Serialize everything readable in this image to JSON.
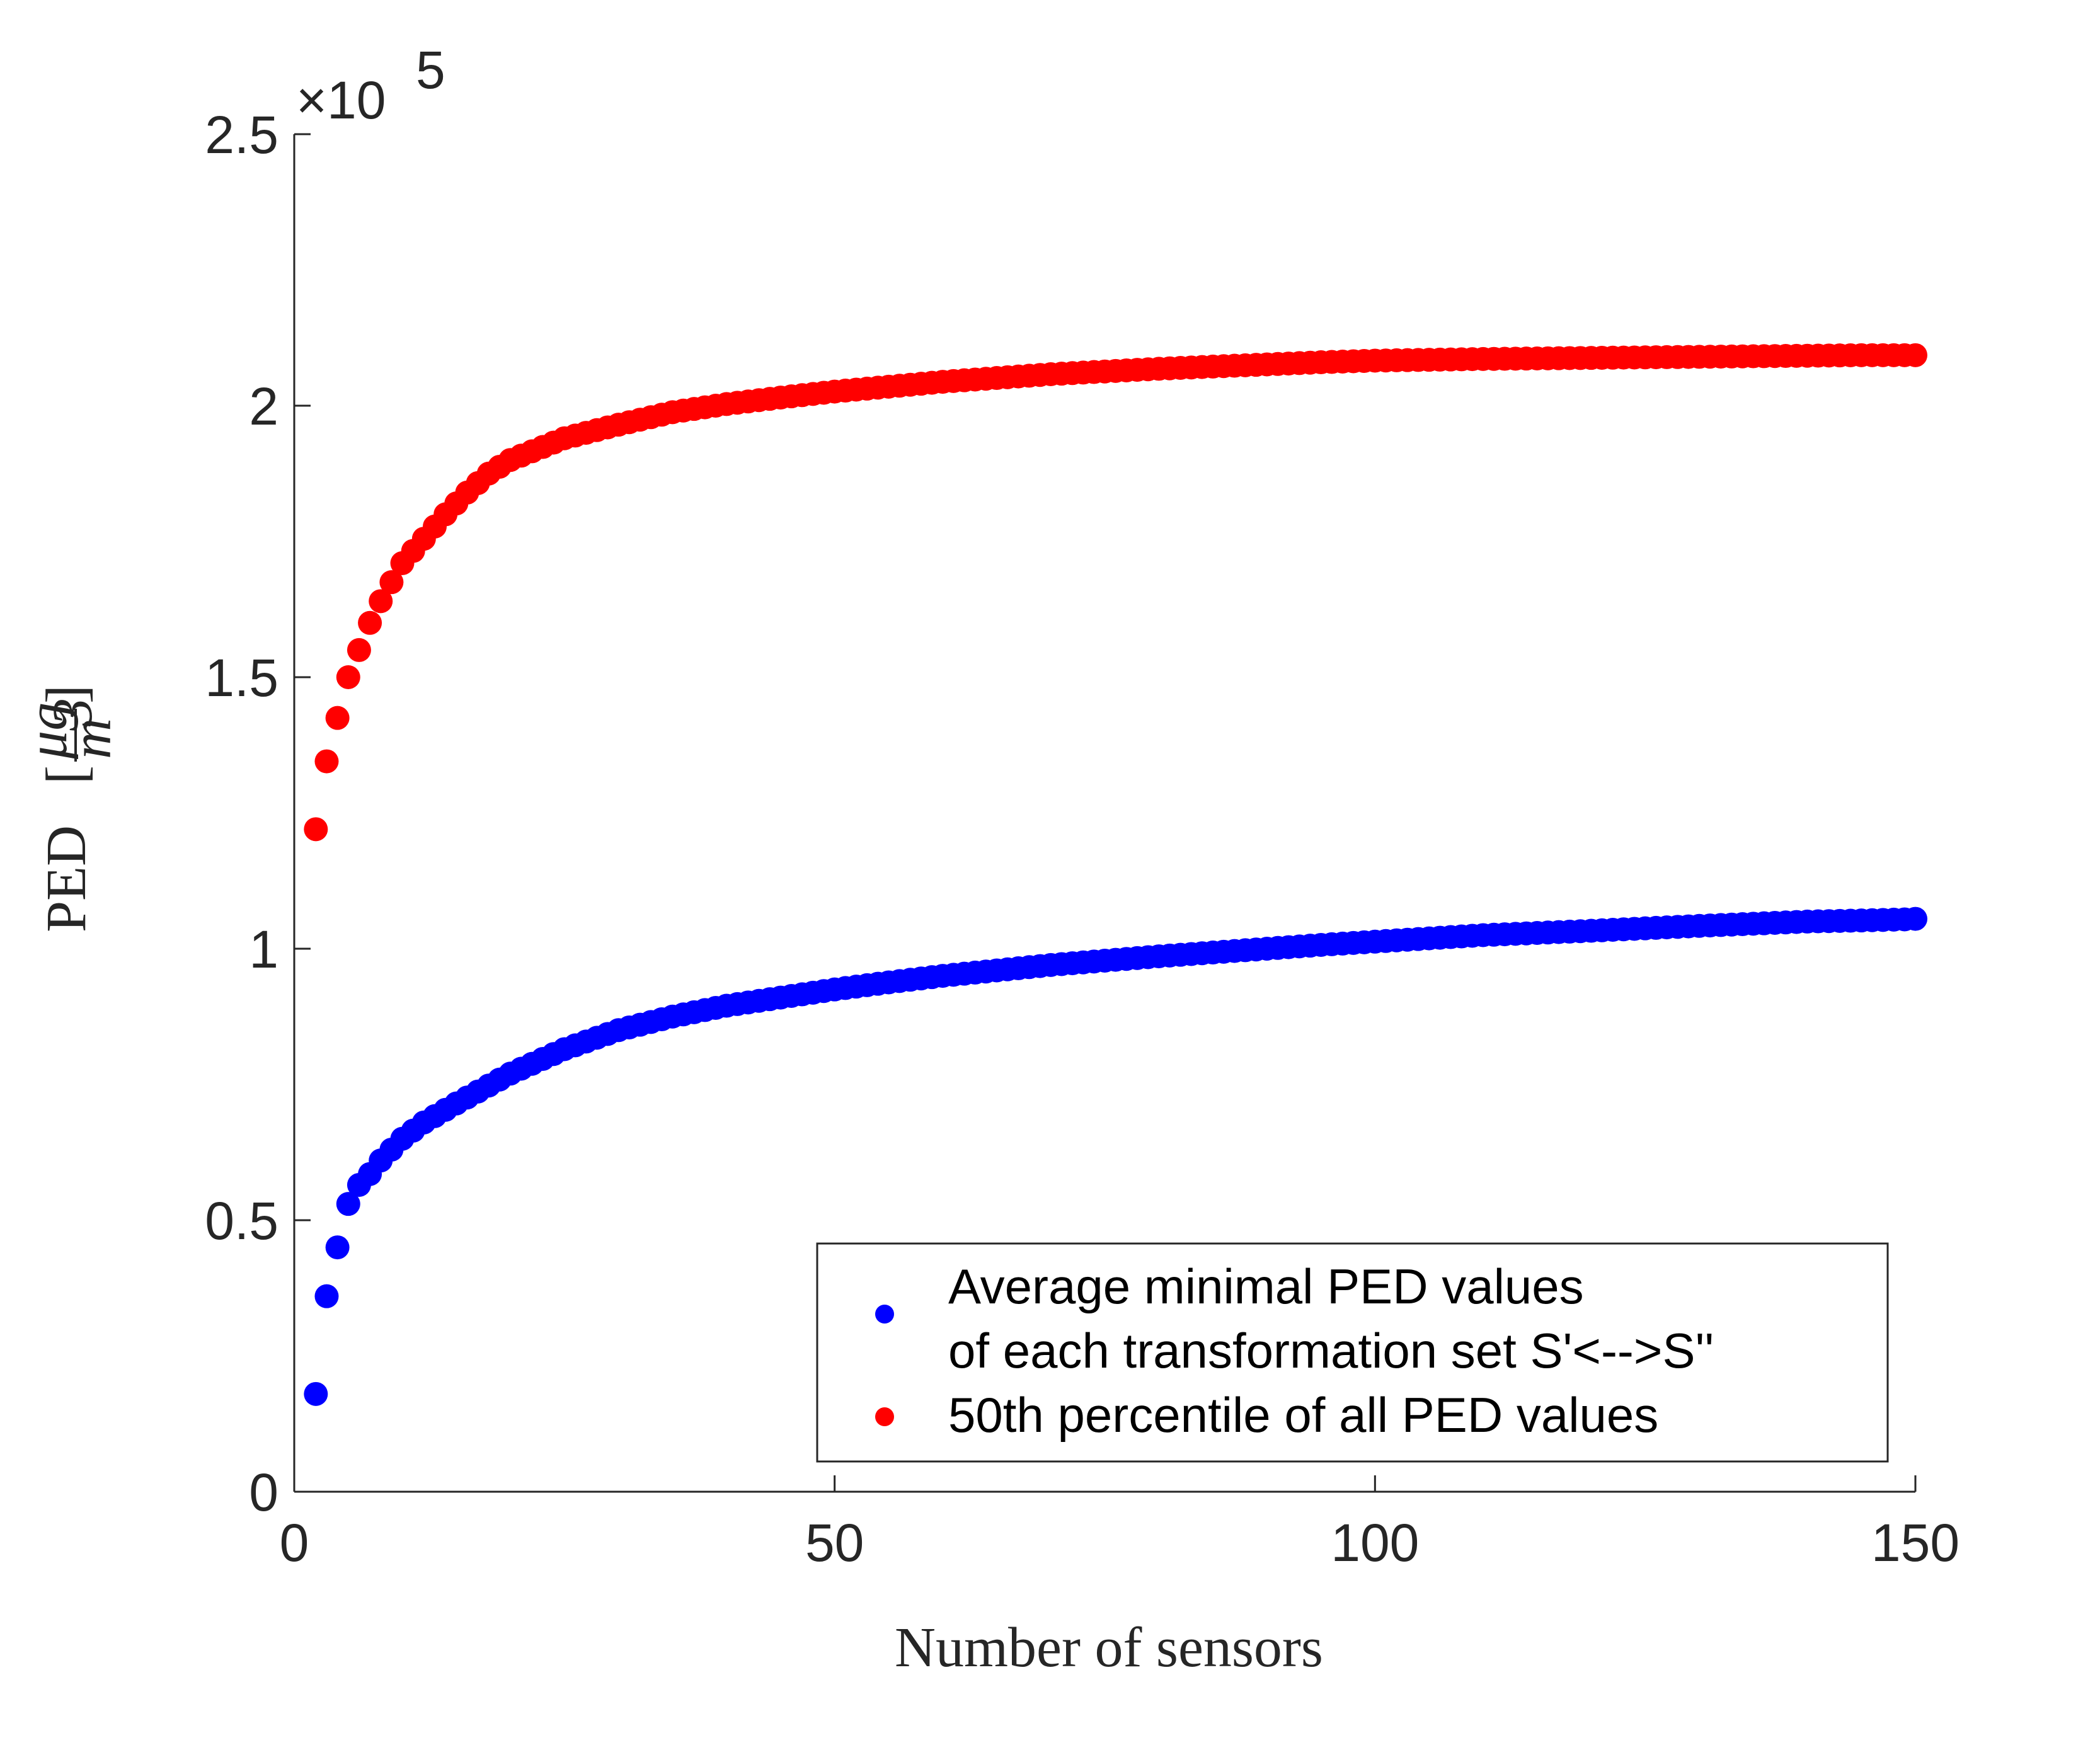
{
  "chart_data": {
    "type": "scatter",
    "xlabel": "Number of sensors",
    "ylabel": "PED",
    "ylabel_unit_numerator": "μg",
    "ylabel_unit_denominator": "m",
    "ylabel_unit_power": "3",
    "y_exponent_prefix": "×10",
    "y_exponent_power": "5",
    "xlim": [
      0,
      150
    ],
    "ylim": [
      0,
      250000
    ],
    "xticks": [
      "0",
      "50",
      "100",
      "150"
    ],
    "yticks": [
      "0",
      "0.5",
      "1",
      "1.5",
      "2",
      "2.5"
    ],
    "grid": false,
    "legend_position": "lower-right",
    "series": [
      {
        "name_line1": "Average minimal PED values",
        "name_line2": "of each transformation set S'<-->S''",
        "color": "#0000ff",
        "points": [
          [
            2,
            18000
          ],
          [
            3,
            36000
          ],
          [
            4,
            45000
          ],
          [
            5,
            53000
          ],
          [
            6,
            56500
          ],
          [
            7,
            58500
          ],
          [
            8,
            61000
          ],
          [
            10,
            65000
          ],
          [
            12,
            68000
          ],
          [
            15,
            71500
          ],
          [
            20,
            77000
          ],
          [
            25,
            81500
          ],
          [
            30,
            85000
          ],
          [
            35,
            87500
          ],
          [
            40,
            89500
          ],
          [
            45,
            91000
          ],
          [
            50,
            92500
          ],
          [
            55,
            93800
          ],
          [
            60,
            95000
          ],
          [
            65,
            96000
          ],
          [
            70,
            97000
          ],
          [
            75,
            97800
          ],
          [
            80,
            98600
          ],
          [
            85,
            99300
          ],
          [
            90,
            100000
          ],
          [
            95,
            100700
          ],
          [
            100,
            101300
          ],
          [
            110,
            102500
          ],
          [
            120,
            103300
          ],
          [
            130,
            104200
          ],
          [
            140,
            105000
          ],
          [
            145,
            105200
          ],
          [
            147,
            105300
          ],
          [
            149,
            105400
          ],
          [
            150,
            105500
          ]
        ]
      },
      {
        "name": "50th percentile of all PED values",
        "color": "#ff0000",
        "points": [
          [
            2,
            122000
          ],
          [
            3,
            134500
          ],
          [
            4,
            142500
          ],
          [
            5,
            150000
          ],
          [
            6,
            155000
          ],
          [
            7,
            160000
          ],
          [
            8,
            164000
          ],
          [
            9,
            167500
          ],
          [
            10,
            171000
          ],
          [
            12,
            175500
          ],
          [
            14,
            180000
          ],
          [
            16,
            184000
          ],
          [
            18,
            187500
          ],
          [
            20,
            190000
          ],
          [
            25,
            194000
          ],
          [
            30,
            196500
          ],
          [
            35,
            198800
          ],
          [
            40,
            200300
          ],
          [
            45,
            201500
          ],
          [
            50,
            202600
          ],
          [
            55,
            203500
          ],
          [
            60,
            204400
          ],
          [
            65,
            205100
          ],
          [
            70,
            205800
          ],
          [
            75,
            206300
          ],
          [
            80,
            206800
          ],
          [
            85,
            207200
          ],
          [
            90,
            207600
          ],
          [
            95,
            208000
          ],
          [
            100,
            208300
          ],
          [
            110,
            208600
          ],
          [
            120,
            208800
          ],
          [
            130,
            209000
          ],
          [
            140,
            209200
          ],
          [
            145,
            209300
          ],
          [
            150,
            209300
          ]
        ]
      }
    ]
  }
}
